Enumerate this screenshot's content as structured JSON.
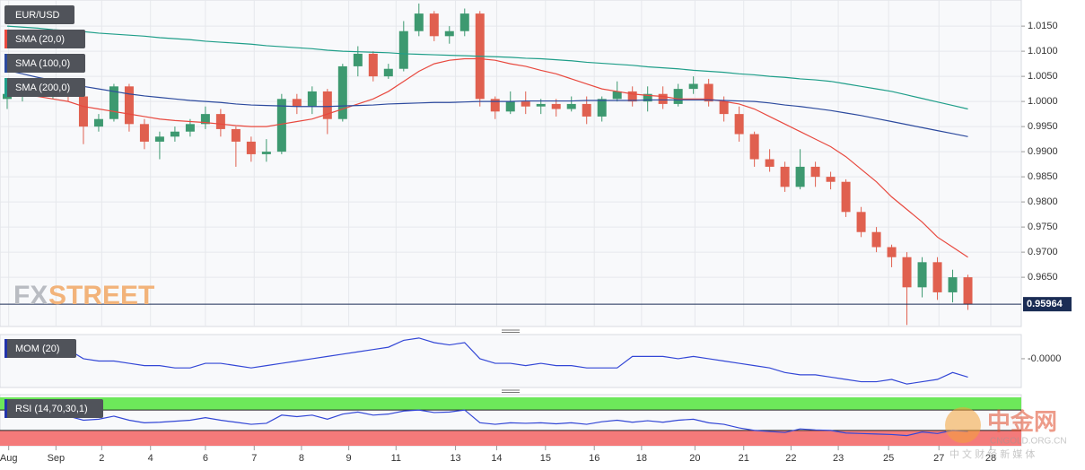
{
  "chart_data": {
    "type": "candlestick",
    "title": "EUR/USD",
    "up_color": "#3d9970",
    "down_color": "#e0604f",
    "grid": true,
    "xlim": [
      -0.47,
      66.5
    ],
    "xticks": [
      {
        "value": 0.1,
        "label": "Aug"
      },
      {
        "value": 3.2,
        "label": "Sep"
      },
      {
        "value": 6.2,
        "label": "2"
      },
      {
        "value": 9.4,
        "label": "4"
      },
      {
        "value": 13,
        "label": "6"
      },
      {
        "value": 16.2,
        "label": "7"
      },
      {
        "value": 19.3,
        "label": "8"
      },
      {
        "value": 22.4,
        "label": "9"
      },
      {
        "value": 25.5,
        "label": "11"
      },
      {
        "value": 29.4,
        "label": "13"
      },
      {
        "value": 32.1,
        "label": "14"
      },
      {
        "value": 35.3,
        "label": "15"
      },
      {
        "value": 38.5,
        "label": "16"
      },
      {
        "value": 41.6,
        "label": "18"
      },
      {
        "value": 45.1,
        "label": "20"
      },
      {
        "value": 48.3,
        "label": "21"
      },
      {
        "value": 51.4,
        "label": "22"
      },
      {
        "value": 54.5,
        "label": "23"
      },
      {
        "value": 57.8,
        "label": "25"
      },
      {
        "value": 61.1,
        "label": "27"
      },
      {
        "value": 64.5,
        "label": "28"
      }
    ],
    "ylim": [
      0.9552,
      1.0202
    ],
    "yticks": [
      {
        "value": 1.015,
        "label": "1.0150"
      },
      {
        "value": 1.01,
        "label": "1.0100"
      },
      {
        "value": 1.005,
        "label": "1.0050"
      },
      {
        "value": 1.0,
        "label": "1.0000"
      },
      {
        "value": 0.995,
        "label": "0.9950"
      },
      {
        "value": 0.99,
        "label": "0.9900"
      },
      {
        "value": 0.985,
        "label": "0.9850"
      },
      {
        "value": 0.98,
        "label": "0.9800"
      },
      {
        "value": 0.975,
        "label": "0.9750"
      },
      {
        "value": 0.97,
        "label": "0.9700"
      },
      {
        "value": 0.965,
        "label": "0.9650"
      }
    ],
    "last_price": 0.95964,
    "watermark": [
      "FX",
      "STREET"
    ],
    "ohlc": [
      [
        1.0005,
        1.003,
        0.9985,
        1.0015
      ],
      [
        1.0015,
        1.004,
        1.0,
        1.0025
      ],
      [
        1.0025,
        1.0045,
        1.001,
        1.002
      ],
      [
        1.002,
        1.0035,
        1.0005,
        1.003
      ],
      [
        1.003,
        1.004,
        1.0,
        1.001
      ],
      [
        1.001,
        1.0015,
        0.9915,
        0.995
      ],
      [
        0.995,
        0.9975,
        0.994,
        0.9965
      ],
      [
        0.9965,
        1.0035,
        0.996,
        1.003
      ],
      [
        1.003,
        1.0035,
        0.994,
        0.9955
      ],
      [
        0.9955,
        0.9965,
        0.9905,
        0.992
      ],
      [
        0.992,
        0.994,
        0.9885,
        0.993
      ],
      [
        0.993,
        0.995,
        0.992,
        0.994
      ],
      [
        0.994,
        0.9965,
        0.993,
        0.9955
      ],
      [
        0.9955,
        0.999,
        0.9945,
        0.9975
      ],
      [
        0.9975,
        0.9985,
        0.993,
        0.9945
      ],
      [
        0.9945,
        0.995,
        0.987,
        0.992
      ],
      [
        0.992,
        0.993,
        0.988,
        0.9895
      ],
      [
        0.9895,
        0.9925,
        0.988,
        0.99
      ],
      [
        0.99,
        1.0015,
        0.9895,
        1.0005
      ],
      [
        1.0005,
        1.0015,
        0.9975,
        0.999
      ],
      [
        0.999,
        1.003,
        0.9975,
        1.002
      ],
      [
        1.002,
        1.0025,
        0.9935,
        0.9965
      ],
      [
        0.9965,
        1.0075,
        0.996,
        1.007
      ],
      [
        1.007,
        1.011,
        1.005,
        1.0095
      ],
      [
        1.0095,
        1.01,
        1.004,
        1.005
      ],
      [
        1.005,
        1.0075,
        1.0045,
        1.0065
      ],
      [
        1.0065,
        1.016,
        1.006,
        1.014
      ],
      [
        1.014,
        1.0195,
        1.013,
        1.0175
      ],
      [
        1.0175,
        1.018,
        1.012,
        1.013
      ],
      [
        1.013,
        1.015,
        1.0115,
        1.014
      ],
      [
        1.014,
        1.0185,
        1.013,
        1.0175
      ],
      [
        1.0175,
        1.018,
        0.999,
        1.0005
      ],
      [
        1.0005,
        1.001,
        0.9965,
        0.998
      ],
      [
        0.998,
        1.002,
        0.9975,
        1.0
      ],
      [
        1.0,
        1.002,
        0.9975,
        0.999
      ],
      [
        0.999,
        1.0005,
        0.9975,
        0.9995
      ],
      [
        0.9995,
        1.0005,
        0.997,
        0.9985
      ],
      [
        0.9985,
        1.001,
        0.998,
        0.9995
      ],
      [
        0.9995,
        1.001,
        0.9955,
        0.997
      ],
      [
        0.997,
        1.001,
        0.996,
        1.0005
      ],
      [
        1.0005,
        1.004,
        1.0,
        1.002
      ],
      [
        1.002,
        1.003,
        0.999,
        1.0
      ],
      [
        1.0,
        1.003,
        0.998,
        1.0015
      ],
      [
        1.0015,
        1.003,
        0.9985,
        0.9995
      ],
      [
        0.9995,
        1.0035,
        0.999,
        1.0025
      ],
      [
        1.0025,
        1.005,
        1.0015,
        1.0035
      ],
      [
        1.0035,
        1.0045,
        0.999,
        1.0
      ],
      [
        1.0,
        1.001,
        0.996,
        0.9975
      ],
      [
        0.9975,
        0.999,
        0.992,
        0.9935
      ],
      [
        0.9935,
        0.994,
        0.987,
        0.9885
      ],
      [
        0.9885,
        0.9905,
        0.986,
        0.987
      ],
      [
        0.987,
        0.988,
        0.982,
        0.983
      ],
      [
        0.983,
        0.9905,
        0.9825,
        0.987
      ],
      [
        0.987,
        0.988,
        0.983,
        0.985
      ],
      [
        0.985,
        0.986,
        0.9825,
        0.984
      ],
      [
        0.984,
        0.9845,
        0.977,
        0.978
      ],
      [
        0.978,
        0.979,
        0.973,
        0.974
      ],
      [
        0.974,
        0.975,
        0.97,
        0.971
      ],
      [
        0.971,
        0.9715,
        0.967,
        0.969
      ],
      [
        0.969,
        0.97,
        0.9555,
        0.963
      ],
      [
        0.963,
        0.969,
        0.961,
        0.968
      ],
      [
        0.968,
        0.969,
        0.9605,
        0.962
      ],
      [
        0.962,
        0.9665,
        0.96,
        0.965
      ],
      [
        0.965,
        0.9655,
        0.9585,
        0.9596
      ]
    ],
    "series": [
      {
        "name": "SMA (20,0)",
        "color": "#e8493f",
        "values": [
          1.001,
          1.0012,
          1.001,
          1.0005,
          1.0,
          0.999,
          0.9985,
          0.998,
          0.9975,
          0.997,
          0.9965,
          0.9962,
          0.996,
          0.9958,
          0.9955,
          0.9952,
          0.995,
          0.995,
          0.9955,
          0.996,
          0.9965,
          0.9975,
          0.9985,
          0.9995,
          1.0005,
          1.002,
          1.004,
          1.006,
          1.0075,
          1.0082,
          1.0085,
          1.0085,
          1.0082,
          1.0075,
          1.007,
          1.0062,
          1.0055,
          1.0045,
          1.0035,
          1.0025,
          1.002,
          1.0015,
          1.0012,
          1.001,
          1.0005,
          1.0005,
          1.0005,
          1.0,
          0.9995,
          0.9985,
          0.997,
          0.9955,
          0.994,
          0.9925,
          0.991,
          0.989,
          0.9865,
          0.984,
          0.981,
          0.9785,
          0.976,
          0.973,
          0.971,
          0.969
        ]
      },
      {
        "name": "SMA (100,0)",
        "color": "#2c4a9e",
        "values": [
          1.0062,
          1.0055,
          1.0048,
          1.0042,
          1.0036,
          1.003,
          1.0025,
          1.002,
          1.0015,
          1.0011,
          1.0008,
          1.0005,
          1.0002,
          1.0,
          0.9998,
          0.9995,
          0.9993,
          0.9992,
          0.9991,
          0.999,
          0.999,
          0.999,
          0.9991,
          0.9992,
          0.9993,
          0.9995,
          0.9996,
          0.9997,
          0.9998,
          0.9998,
          0.9999,
          1.0,
          1.0,
          1.0,
          1.0001,
          1.0001,
          1.0001,
          1.0001,
          1.0002,
          1.0002,
          1.0002,
          1.0002,
          1.0003,
          1.0003,
          1.0003,
          1.0003,
          1.0003,
          1.0002,
          1.0001,
          1.0,
          0.9997,
          0.9993,
          0.999,
          0.9986,
          0.9982,
          0.9977,
          0.9972,
          0.9966,
          0.996,
          0.9954,
          0.9948,
          0.9942,
          0.9936,
          0.993
        ]
      },
      {
        "name": "SMA (200,0)",
        "color": "#1f9e89",
        "values": [
          1.015,
          1.0148,
          1.0146,
          1.0143,
          1.0141,
          1.0139,
          1.0136,
          1.0134,
          1.0132,
          1.013,
          1.0127,
          1.0125,
          1.0123,
          1.012,
          1.0118,
          1.0116,
          1.0114,
          1.0111,
          1.0109,
          1.0107,
          1.0105,
          1.0102,
          1.01,
          1.0099,
          1.0098,
          1.0097,
          1.0095,
          1.0094,
          1.0093,
          1.0092,
          1.0091,
          1.009,
          1.0089,
          1.0088,
          1.0086,
          1.0085,
          1.0083,
          1.0081,
          1.0078,
          1.0076,
          1.0074,
          1.0072,
          1.0069,
          1.0067,
          1.0065,
          1.0062,
          1.006,
          1.0058,
          1.0055,
          1.0053,
          1.005,
          1.0048,
          1.0045,
          1.0043,
          1.004,
          1.0035,
          1.003,
          1.0025,
          1.002,
          1.0013,
          1.0006,
          0.9999,
          0.9992,
          0.9985
        ]
      }
    ],
    "indicators": [
      {
        "type": "line",
        "name": "MOM (20)",
        "color": "#3347d6",
        "ylim": [
          -0.0125,
          0.0105
        ],
        "yticks": [
          {
            "value": 0,
            "label": "-0.0000"
          }
        ],
        "values": [
          0.006,
          0.005,
          0.006,
          0.005,
          0.004,
          0.0,
          -0.001,
          -0.001,
          -0.002,
          -0.003,
          -0.003,
          -0.004,
          -0.004,
          -0.002,
          -0.002,
          -0.003,
          -0.004,
          -0.003,
          -0.002,
          -0.001,
          0.0,
          0.001,
          0.002,
          0.003,
          0.004,
          0.005,
          0.008,
          0.009,
          0.007,
          0.006,
          0.007,
          0.0,
          -0.002,
          -0.002,
          -0.003,
          -0.002,
          -0.003,
          -0.003,
          -0.004,
          -0.004,
          -0.004,
          0.001,
          0.001,
          0.001,
          0.0,
          0.001,
          0.0,
          -0.001,
          -0.002,
          -0.003,
          -0.004,
          -0.006,
          -0.007,
          -0.007,
          -0.008,
          -0.009,
          -0.01,
          -0.01,
          -0.009,
          -0.011,
          -0.01,
          -0.009,
          -0.006,
          -0.008
        ]
      },
      {
        "type": "line",
        "name": "RSI (14,70,30,1)",
        "color": "#3347d6",
        "ylim": [
          0,
          100
        ],
        "overbought": 70,
        "oversold": 30,
        "overbought_color": "#6de85a",
        "oversold_color": "#f47a7a",
        "values": [
          60,
          62,
          64,
          60,
          58,
          50,
          52,
          58,
          50,
          45,
          46,
          48,
          50,
          55,
          50,
          46,
          42,
          44,
          60,
          57,
          60,
          52,
          62,
          66,
          60,
          62,
          68,
          70,
          65,
          66,
          70,
          45,
          42,
          45,
          44,
          45,
          43,
          45,
          42,
          47,
          50,
          46,
          49,
          46,
          50,
          52,
          45,
          42,
          35,
          30,
          28,
          26,
          33,
          31,
          30,
          25,
          24,
          23,
          22,
          20,
          27,
          24,
          30,
          28
        ]
      }
    ]
  },
  "watermark": {
    "name": "中金网",
    "site": "CNGOLD.ORG.CN",
    "tagline": "中 文 财 经 新 媒 体"
  }
}
